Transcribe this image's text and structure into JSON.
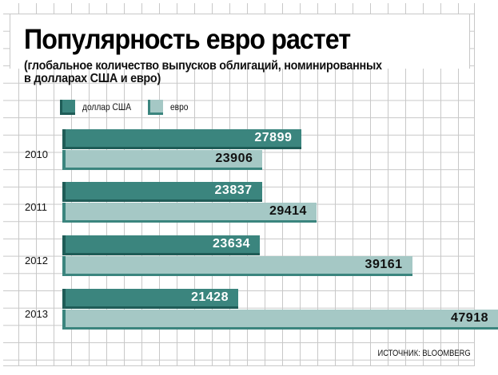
{
  "chart_data": {
    "type": "bar",
    "orientation": "horizontal",
    "title": "Популярность евро растет",
    "subtitle_lines": [
      "(глобальное количество выпусков облигаций, номинированных",
      "в долларах США и евро)"
    ],
    "categories": [
      "2010",
      "2011",
      "2012",
      "2013"
    ],
    "series": [
      {
        "name": "доллар США",
        "color": "#3b857e",
        "values": [
          27899,
          23837,
          23634,
          21428
        ]
      },
      {
        "name": "евро",
        "color": "#a5c8c5",
        "values": [
          23906,
          29414,
          39161,
          47918
        ]
      }
    ],
    "xlim": [
      3500,
      50000
    ],
    "legend_position": "top-left",
    "source": "ИСТОЧНИК: BLOOMBERG",
    "grid": true
  }
}
